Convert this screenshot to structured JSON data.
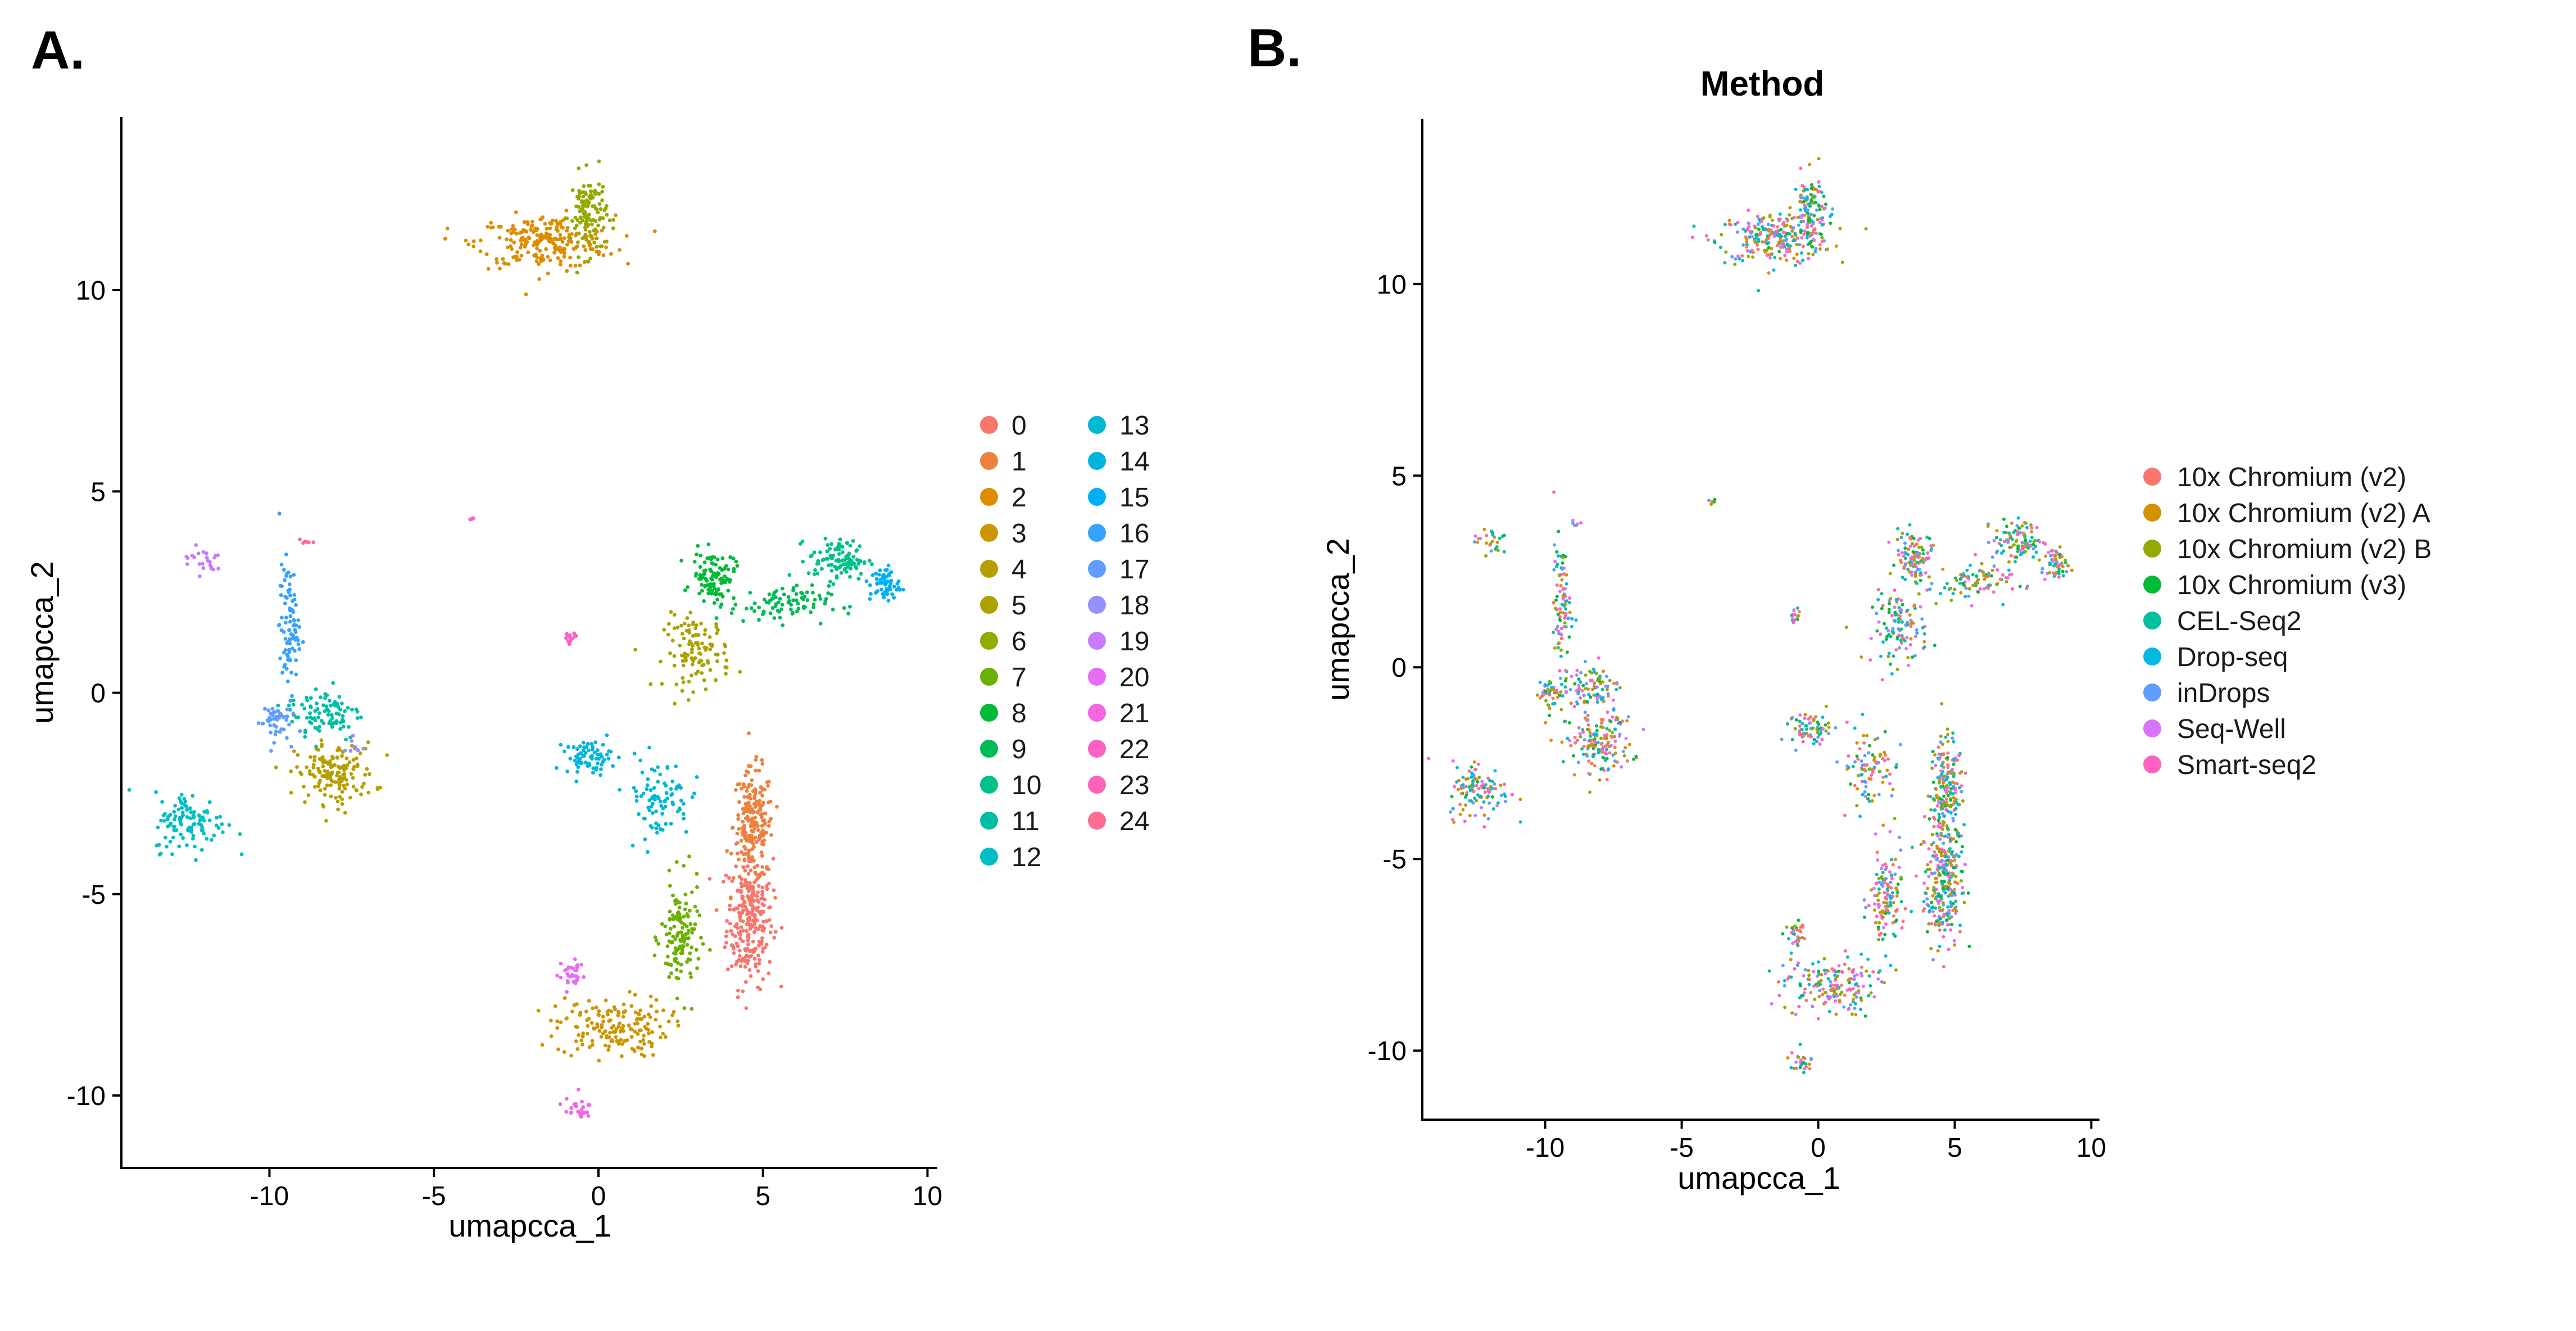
{
  "panels": [
    {
      "letter": "A.",
      "title": "",
      "xlabel": "umapcca_1",
      "ylabel": "umapcca_2",
      "legend_columns": 2
    },
    {
      "letter": "B.",
      "title": "Method",
      "xlabel": "umapcca_1",
      "ylabel": "umapcca_2",
      "legend_columns": 1
    }
  ],
  "chart_data": [
    {
      "type": "scatter",
      "title": "",
      "xlabel": "umapcca_1",
      "ylabel": "umapcca_2",
      "xlim": [
        -14.5,
        10.3
      ],
      "ylim": [
        -11.8,
        14.3
      ],
      "xticks": [
        -10,
        -5,
        0,
        5,
        10
      ],
      "xtick_labels": [
        "-10",
        "-5",
        "0",
        "5",
        "10"
      ],
      "yticks": [
        -10,
        -5,
        0,
        5,
        10
      ],
      "ytick_labels": [
        "-10",
        "-5",
        "0",
        "5",
        "10"
      ],
      "grid": false,
      "legend_placement": "right",
      "legend_title": "",
      "series": [
        {
          "name": "0",
          "color": "#F8766D"
        },
        {
          "name": "1",
          "color": "#ED813E"
        },
        {
          "name": "2",
          "color": "#DE8C00"
        },
        {
          "name": "3",
          "color": "#CD9600"
        },
        {
          "name": "4",
          "color": "#B79F00"
        },
        {
          "name": "5",
          "color": "#ABA300"
        },
        {
          "name": "6",
          "color": "#93AA00"
        },
        {
          "name": "7",
          "color": "#6BB100"
        },
        {
          "name": "8",
          "color": "#00BA38"
        },
        {
          "name": "9",
          "color": "#00BC56"
        },
        {
          "name": "10",
          "color": "#00C08B"
        },
        {
          "name": "11",
          "color": "#00BFA5"
        },
        {
          "name": "12",
          "color": "#00BFC4"
        },
        {
          "name": "13",
          "color": "#00B8D2"
        },
        {
          "name": "14",
          "color": "#00B4E0"
        },
        {
          "name": "15",
          "color": "#00B0F6"
        },
        {
          "name": "16",
          "color": "#35A2FF"
        },
        {
          "name": "17",
          "color": "#619CFF"
        },
        {
          "name": "18",
          "color": "#9590FF"
        },
        {
          "name": "19",
          "color": "#C77CFF"
        },
        {
          "name": "20",
          "color": "#E76BF3"
        },
        {
          "name": "21",
          "color": "#F564E3"
        },
        {
          "name": "22",
          "color": "#FF61C3"
        },
        {
          "name": "23",
          "color": "#FF62BC"
        },
        {
          "name": "24",
          "color": "#FF6C91"
        }
      ],
      "clusters": [
        {
          "series": "0",
          "cx": 4.6,
          "cy": -5.6,
          "rx": 0.7,
          "ry": 1.7,
          "n": 260
        },
        {
          "series": "1",
          "cx": 4.7,
          "cy": -3.3,
          "rx": 0.6,
          "ry": 1.4,
          "n": 200
        },
        {
          "series": "2",
          "cx": -1.6,
          "cy": 11.2,
          "rx": 2.1,
          "ry": 0.65,
          "n": 230
        },
        {
          "series": "3",
          "cx": 0.4,
          "cy": -8.3,
          "rx": 1.7,
          "ry": 0.75,
          "n": 170
        },
        {
          "series": "4",
          "cx": -8.0,
          "cy": -2.0,
          "rx": 1.2,
          "ry": 0.75,
          "n": 150
        },
        {
          "series": "5",
          "cx": 3.0,
          "cy": 1.0,
          "rx": 1.0,
          "ry": 0.9,
          "n": 110
        },
        {
          "series": "6",
          "cx": -0.3,
          "cy": 11.9,
          "rx": 0.55,
          "ry": 1.0,
          "n": 120
        },
        {
          "series": "7",
          "cx": 2.5,
          "cy": -6.1,
          "rx": 0.6,
          "ry": 1.4,
          "n": 130
        },
        {
          "series": "8",
          "cx": 3.5,
          "cy": 2.9,
          "rx": 0.65,
          "ry": 0.6,
          "n": 100
        },
        {
          "series": "9",
          "cx": 5.5,
          "cy": 2.2,
          "rx": 1.5,
          "ry": 0.45,
          "n": 90
        },
        {
          "series": "10",
          "cx": 7.3,
          "cy": 3.3,
          "rx": 0.9,
          "ry": 0.5,
          "n": 100
        },
        {
          "series": "11",
          "cx": -8.3,
          "cy": -0.5,
          "rx": 1.1,
          "ry": 0.7,
          "n": 90
        },
        {
          "series": "12",
          "cx": -12.4,
          "cy": -3.2,
          "rx": 1.1,
          "ry": 0.75,
          "n": 110
        },
        {
          "series": "13",
          "cx": 1.8,
          "cy": -2.6,
          "rx": 1.0,
          "ry": 1.0,
          "n": 90
        },
        {
          "series": "14",
          "cx": -0.3,
          "cy": -1.6,
          "rx": 0.7,
          "ry": 0.4,
          "n": 70
        },
        {
          "series": "15",
          "cx": 8.7,
          "cy": 2.7,
          "rx": 0.45,
          "ry": 0.45,
          "n": 60
        },
        {
          "series": "16",
          "cx": -9.4,
          "cy": 1.6,
          "rx": 0.3,
          "ry": 1.6,
          "n": 90
        },
        {
          "series": "17",
          "cx": -9.9,
          "cy": -0.7,
          "rx": 0.5,
          "ry": 0.5,
          "n": 45
        },
        {
          "series": "18",
          "cx": -7.4,
          "cy": -1.3,
          "rx": 0.3,
          "ry": 0.3,
          "n": 8
        },
        {
          "series": "19",
          "cx": -12.0,
          "cy": 3.3,
          "rx": 0.7,
          "ry": 0.35,
          "n": 25
        },
        {
          "series": "20",
          "cx": -0.8,
          "cy": -7.0,
          "rx": 0.4,
          "ry": 0.4,
          "n": 30
        },
        {
          "series": "21",
          "cx": -0.7,
          "cy": -10.3,
          "rx": 0.5,
          "ry": 0.25,
          "n": 25
        },
        {
          "series": "22",
          "cx": -0.9,
          "cy": 1.3,
          "rx": 0.3,
          "ry": 0.18,
          "n": 14
        },
        {
          "series": "23",
          "cx": -3.8,
          "cy": 4.3,
          "rx": 0.12,
          "ry": 0.12,
          "n": 5
        },
        {
          "series": "24",
          "cx": -8.9,
          "cy": 3.8,
          "rx": 0.2,
          "ry": 0.15,
          "n": 6
        }
      ]
    },
    {
      "type": "scatter",
      "title": "Method",
      "xlabel": "umapcca_1",
      "ylabel": "umapcca_2",
      "xlim": [
        -14.5,
        10.3
      ],
      "ylim": [
        -11.8,
        14.3
      ],
      "xticks": [
        -10,
        -5,
        0,
        5,
        10
      ],
      "xtick_labels": [
        "-10",
        "-5",
        "0",
        "5",
        "10"
      ],
      "yticks": [
        -10,
        -5,
        0,
        5,
        10
      ],
      "ytick_labels": [
        "-10",
        "-5",
        "0",
        "5",
        "10"
      ],
      "grid": false,
      "legend_placement": "right",
      "legend_title": "",
      "series": [
        {
          "name": "10x Chromium (v2)",
          "color": "#F8766D"
        },
        {
          "name": "10x Chromium (v2) A",
          "color": "#D39200"
        },
        {
          "name": "10x Chromium (v2) B",
          "color": "#93AA00"
        },
        {
          "name": "10x Chromium (v3)",
          "color": "#00BA38"
        },
        {
          "name": "CEL-Seq2",
          "color": "#00C19F"
        },
        {
          "name": "Drop-seq",
          "color": "#00B9E3"
        },
        {
          "name": "inDrops",
          "color": "#619CFF"
        },
        {
          "name": "Seq-Well",
          "color": "#DB72FB"
        },
        {
          "name": "Smart-seq2",
          "color": "#FF61C3"
        }
      ]
    }
  ]
}
